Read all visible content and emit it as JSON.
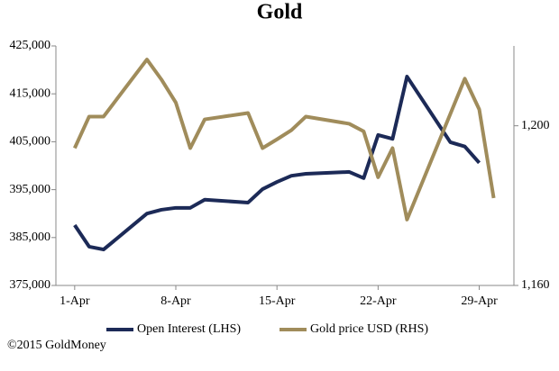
{
  "chart_data": {
    "type": "line",
    "title": "Gold",
    "xlim": [
      -0.3,
      31.4
    ],
    "xticks": [
      {
        "value": 1,
        "label": "1-Apr"
      },
      {
        "value": 8,
        "label": "8-Apr"
      },
      {
        "value": 15,
        "label": "15-Apr"
      },
      {
        "value": 22,
        "label": "22-Apr"
      },
      {
        "value": 29,
        "label": "29-Apr"
      }
    ],
    "ylim": [
      375000,
      425000
    ],
    "yticks": [
      {
        "value": 375000,
        "label": "375,000"
      },
      {
        "value": 385000,
        "label": "385,000"
      },
      {
        "value": 395000,
        "label": "395,000"
      },
      {
        "value": 405000,
        "label": "405,000"
      },
      {
        "value": 415000,
        "label": "415,000"
      },
      {
        "value": 425000,
        "label": "425,000"
      }
    ],
    "y2lim": [
      1160,
      1220
    ],
    "y2ticks": [
      {
        "value": 1160,
        "label": "1,160"
      },
      {
        "value": 1200,
        "label": "1,200"
      }
    ],
    "series": [
      {
        "name": "Open Interest (LHS)",
        "color": "#1c2a57",
        "x": [
          1,
          2,
          3,
          6,
          7,
          8,
          9,
          10,
          13,
          14,
          15,
          16,
          17,
          20,
          21,
          22,
          23,
          24,
          27,
          28,
          29
        ],
        "values": [
          387600,
          383100,
          382500,
          390000,
          390800,
          391200,
          391200,
          392900,
          392300,
          395100,
          396600,
          397900,
          398300,
          398700,
          397400,
          406400,
          405600,
          418600,
          404900,
          404000,
          400600
        ]
      },
      {
        "name": "Gold price USD (RHS)",
        "color": "#a08c5b",
        "axis": "y2",
        "x": [
          1,
          2,
          3,
          6,
          7,
          8,
          9,
          10,
          13,
          14,
          15,
          16,
          17,
          20,
          21,
          22,
          23,
          24,
          28,
          29,
          30
        ],
        "values": [
          1194.4,
          1202.3,
          1202.3,
          1216.6,
          1211.6,
          1205.8,
          1194.4,
          1201.6,
          1203.2,
          1194.4,
          1196.6,
          1198.9,
          1202.3,
          1200.5,
          1198.6,
          1187.1,
          1194.4,
          1176.5,
          1211.8,
          1204.1,
          1181.9
        ]
      }
    ],
    "source": "©2015 GoldMoney"
  }
}
